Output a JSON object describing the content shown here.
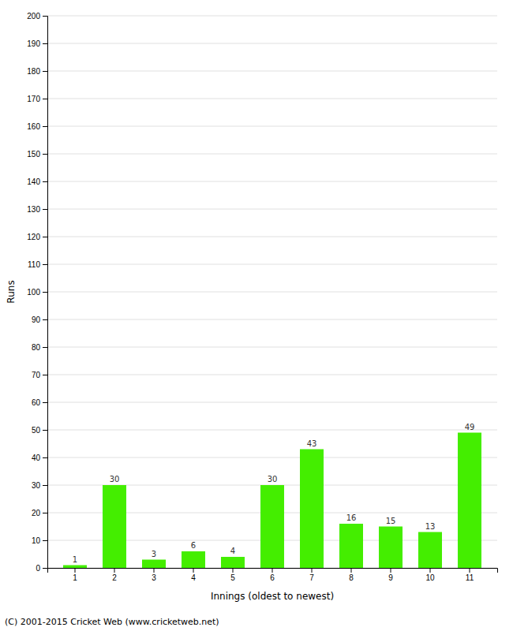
{
  "chart_data": {
    "type": "bar",
    "xlabel": "Innings (oldest to newest)",
    "ylabel": "Runs",
    "categories": [
      "1",
      "2",
      "3",
      "4",
      "5",
      "6",
      "7",
      "8",
      "9",
      "10",
      "11"
    ],
    "values": [
      1,
      30,
      3,
      6,
      4,
      30,
      43,
      16,
      15,
      13,
      49
    ],
    "color": "#44ee00",
    "ylim": [
      0,
      200
    ],
    "yticks": [
      0,
      10,
      20,
      30,
      40,
      50,
      60,
      70,
      80,
      90,
      100,
      110,
      120,
      130,
      140,
      150,
      160,
      170,
      180,
      190,
      200
    ],
    "grid": true,
    "data_labels": true,
    "footer": "(C) 2001-2015 Cricket Web (www.cricketweb.net)"
  }
}
